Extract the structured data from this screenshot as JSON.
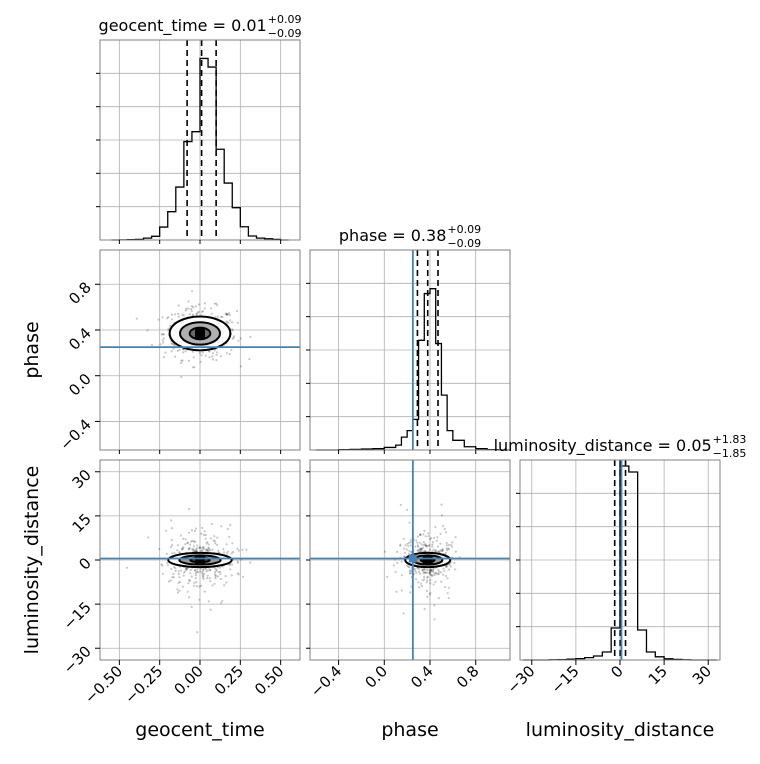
{
  "chart_data": {
    "type": "corner",
    "parameters": [
      "geocent_time",
      "phase",
      "luminosity_distance"
    ],
    "truths": {
      "geocent_time": null,
      "phase": 0.25,
      "luminosity_distance": 0.5
    },
    "titles": [
      {
        "name": "geocent_time",
        "median": "0.01",
        "plus": "+0.09",
        "minus": "−0.09"
      },
      {
        "name": "phase",
        "median": "0.38",
        "plus": "+0.09",
        "minus": "−0.09"
      },
      {
        "name": "luminosity_distance",
        "median": "0.05",
        "plus": "+1.83",
        "minus": "−1.85"
      }
    ],
    "axes": {
      "geocent_time": {
        "range": [
          -0.62,
          0.62
        ],
        "ticks": [
          -0.5,
          -0.25,
          0.0,
          0.25,
          0.5
        ],
        "tick_labels": [
          "−0.50",
          "−0.25",
          "0.00",
          "0.25",
          "0.50"
        ]
      },
      "phase": {
        "range": [
          -0.65,
          1.1
        ],
        "ticks": [
          -0.4,
          0.0,
          0.4,
          0.8
        ],
        "tick_labels": [
          "−0.4",
          "0.0",
          "0.4",
          "0.8"
        ]
      },
      "luminosity_distance": {
        "range": [
          -34,
          34
        ],
        "ticks": [
          -30,
          -15,
          0,
          15,
          30
        ],
        "tick_labels": [
          "−30",
          "−15",
          "0",
          "15",
          "30"
        ]
      }
    },
    "histograms": [
      {
        "parameter": "geocent_time",
        "bin_edges": [
          -0.55,
          -0.5,
          -0.45,
          -0.4,
          -0.35,
          -0.3,
          -0.25,
          -0.2,
          -0.15,
          -0.1,
          -0.05,
          0.0,
          0.05,
          0.1,
          0.15,
          0.2,
          0.25,
          0.3,
          0.35,
          0.4,
          0.45,
          0.5,
          0.55
        ],
        "counts": [
          0,
          0.5,
          1,
          2,
          6,
          12,
          42,
          92,
          172,
          320,
          352,
          590,
          562,
          295,
          185,
          105,
          43,
          13,
          6,
          4,
          2,
          0
        ],
        "ymax": 650,
        "quantiles": [
          -0.08,
          0.01,
          0.1
        ]
      },
      {
        "parameter": "phase",
        "bin_edges": [
          -0.6,
          -0.5,
          -0.4,
          -0.3,
          -0.2,
          -0.1,
          0.0,
          0.1,
          0.15,
          0.2,
          0.25,
          0.3,
          0.35,
          0.4,
          0.45,
          0.5,
          0.55,
          0.6,
          0.7,
          0.8,
          0.9,
          1.0,
          1.1
        ],
        "counts": [
          0,
          0,
          1,
          2,
          3,
          4,
          8,
          15,
          40,
          60,
          95,
          340,
          485,
          500,
          330,
          170,
          60,
          30,
          10,
          4,
          1,
          0
        ],
        "ymax": 620,
        "quantiles": [
          0.29,
          0.38,
          0.47
        ]
      },
      {
        "parameter": "luminosity_distance",
        "bin_edges": [
          -33,
          -30,
          -27,
          -24,
          -21,
          -18,
          -15,
          -12,
          -9,
          -6,
          -3,
          0,
          3,
          6,
          9,
          12,
          15,
          18,
          21,
          24,
          27,
          30,
          33
        ],
        "counts": [
          0,
          0,
          0,
          1,
          2,
          4,
          7,
          12,
          20,
          40,
          160,
          970,
          940,
          150,
          40,
          16,
          6,
          3,
          1,
          0,
          0,
          0
        ],
        "ymax": 1000,
        "quantiles": [
          -1.8,
          0.05,
          1.88
        ]
      }
    ],
    "contour_centers": [
      {
        "x": "geocent_time",
        "y": "phase",
        "cx": 0.0,
        "cy": 0.37
      },
      {
        "x": "geocent_time",
        "y": "luminosity_distance",
        "cx": 0.0,
        "cy": 0.0
      },
      {
        "x": "phase",
        "y": "luminosity_distance",
        "cx": 0.38,
        "cy": 0.0
      }
    ],
    "grid": true,
    "colors": {
      "truth": "#4682b4",
      "hist": "#000000",
      "grid": "#b0b0b0",
      "points": "#000000"
    }
  }
}
